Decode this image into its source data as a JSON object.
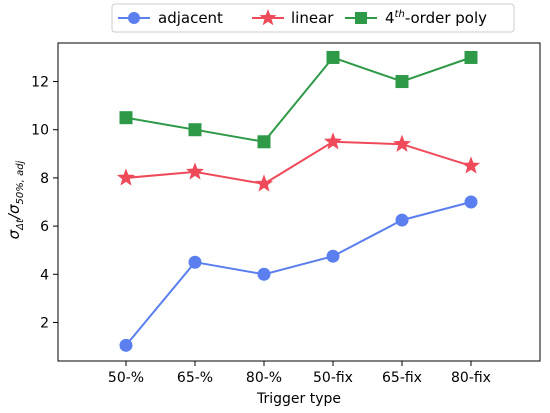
{
  "chart_data": {
    "type": "line",
    "categories": [
      "50-%",
      "65-%",
      "80-%",
      "50-fix",
      "65-fix",
      "80-fix"
    ],
    "series": [
      {
        "name": "adjacent",
        "marker": "circle",
        "color": "#5b7fef",
        "values": [
          1.05,
          4.5,
          4.0,
          4.75,
          6.25,
          7.0
        ]
      },
      {
        "name": "linear",
        "marker": "star",
        "color": "#ef4a5a",
        "values": [
          8.0,
          8.25,
          7.75,
          9.5,
          9.4,
          8.5
        ]
      },
      {
        "name_main": "4",
        "name_sup": "th",
        "name_rest": "-order poly",
        "marker": "square",
        "color": "#2e9a48",
        "values": [
          10.5,
          10.0,
          9.5,
          13.0,
          12.0,
          13.0
        ]
      }
    ],
    "xlabel": "Trigger type",
    "ylabel_main": "σ",
    "ylabel_sub1": "Δt",
    "ylabel_mid": "/σ",
    "ylabel_sub2": "50%, adj",
    "yticks": [
      2,
      4,
      6,
      8,
      10,
      12
    ],
    "ylim": [
      0.4,
      13.6
    ],
    "legend_position": "top-center"
  }
}
